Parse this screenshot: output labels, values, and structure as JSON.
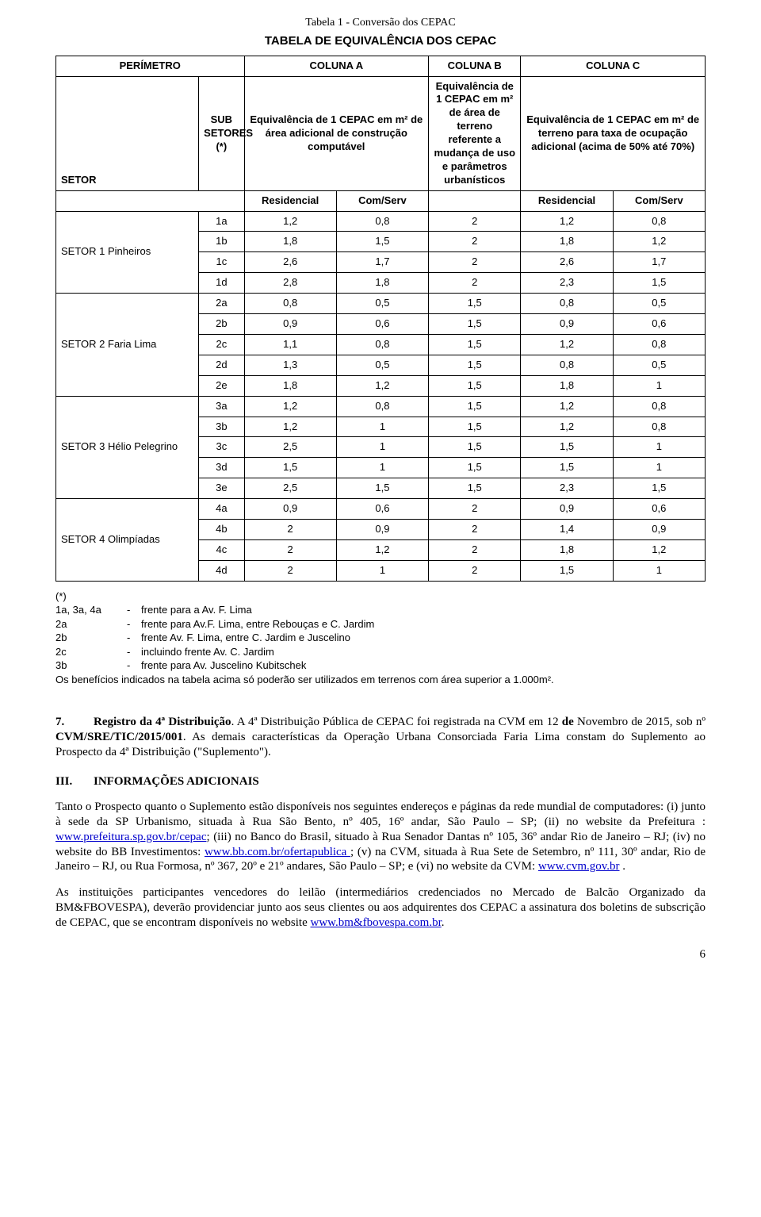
{
  "caption_small": "Tabela 1 - Conversão dos CEPAC",
  "caption_bold": "TABELA DE EQUIVALÊNCIA DOS CEPAC",
  "columns": {
    "perimetro": "PERÍMETRO",
    "col_a": "COLUNA A",
    "col_b": "COLUNA B",
    "col_c": "COLUNA C",
    "setor": "SETOR",
    "sub": "SUB SETORES (*)",
    "col_a_desc": "Equivalência de 1 CEPAC em m² de área adicional de construção computável",
    "col_b_desc": "Equivalência de 1 CEPAC em m² de área de terreno referente a mudança de uso e parâmetros urbanísticos",
    "col_c_desc": "Equivalência de 1 CEPAC em m² de terreno para taxa de ocupação adicional (acima de 50% até 70%)",
    "res": "Residencial",
    "com": "Com/Serv"
  },
  "sectors": [
    {
      "name": "SETOR 1  Pinheiros",
      "rows": [
        {
          "sub": "1a",
          "a_res": "1,2",
          "a_com": "0,8",
          "b": "2",
          "c_res": "1,2",
          "c_com": "0,8"
        },
        {
          "sub": "1b",
          "a_res": "1,8",
          "a_com": "1,5",
          "b": "2",
          "c_res": "1,8",
          "c_com": "1,2"
        },
        {
          "sub": "1c",
          "a_res": "2,6",
          "a_com": "1,7",
          "b": "2",
          "c_res": "2,6",
          "c_com": "1,7"
        },
        {
          "sub": "1d",
          "a_res": "2,8",
          "a_com": "1,8",
          "b": "2",
          "c_res": "2,3",
          "c_com": "1,5"
        }
      ]
    },
    {
      "name": "SETOR 2  Faria Lima",
      "rows": [
        {
          "sub": "2a",
          "a_res": "0,8",
          "a_com": "0,5",
          "b": "1,5",
          "c_res": "0,8",
          "c_com": "0,5"
        },
        {
          "sub": "2b",
          "a_res": "0,9",
          "a_com": "0,6",
          "b": "1,5",
          "c_res": "0,9",
          "c_com": "0,6"
        },
        {
          "sub": "2c",
          "a_res": "1,1",
          "a_com": "0,8",
          "b": "1,5",
          "c_res": "1,2",
          "c_com": "0,8"
        },
        {
          "sub": "2d",
          "a_res": "1,3",
          "a_com": "0,5",
          "b": "1,5",
          "c_res": "0,8",
          "c_com": "0,5"
        },
        {
          "sub": "2e",
          "a_res": "1,8",
          "a_com": "1,2",
          "b": "1,5",
          "c_res": "1,8",
          "c_com": "1"
        }
      ]
    },
    {
      "name": "SETOR 3  Hélio Pelegrino",
      "rows": [
        {
          "sub": "3a",
          "a_res": "1,2",
          "a_com": "0,8",
          "b": "1,5",
          "c_res": "1,2",
          "c_com": "0,8"
        },
        {
          "sub": "3b",
          "a_res": "1,2",
          "a_com": "1",
          "b": "1,5",
          "c_res": "1,2",
          "c_com": "0,8"
        },
        {
          "sub": "3c",
          "a_res": "2,5",
          "a_com": "1",
          "b": "1,5",
          "c_res": "1,5",
          "c_com": "1"
        },
        {
          "sub": "3d",
          "a_res": "1,5",
          "a_com": "1",
          "b": "1,5",
          "c_res": "1,5",
          "c_com": "1"
        },
        {
          "sub": "3e",
          "a_res": "2,5",
          "a_com": "1,5",
          "b": "1,5",
          "c_res": "2,3",
          "c_com": "1,5"
        }
      ]
    },
    {
      "name": "SETOR 4  Olimpíadas",
      "rows": [
        {
          "sub": "4a",
          "a_res": "0,9",
          "a_com": "0,6",
          "b": "2",
          "c_res": "0,9",
          "c_com": "0,6"
        },
        {
          "sub": "4b",
          "a_res": "2",
          "a_com": "0,9",
          "b": "2",
          "c_res": "1,4",
          "c_com": "0,9"
        },
        {
          "sub": "4c",
          "a_res": "2",
          "a_com": "1,2",
          "b": "2",
          "c_res": "1,8",
          "c_com": "1,2"
        },
        {
          "sub": "4d",
          "a_res": "2",
          "a_com": "1",
          "b": "2",
          "c_res": "1,5",
          "c_com": "1"
        }
      ]
    }
  ],
  "footnotes": {
    "star": "(*)",
    "items": [
      {
        "key": "1a, 3a, 4a",
        "sep": "-",
        "val": "frente para a Av. F. Lima"
      },
      {
        "key": "2a",
        "sep": "-",
        "val": "frente para Av.F. Lima, entre Rebouças e C. Jardim"
      },
      {
        "key": "2b",
        "sep": "-",
        "val": "frente Av. F. Lima, entre C. Jardim e Juscelino"
      },
      {
        "key": "2c",
        "sep": "-",
        "val": "incluindo frente Av. C. Jardim"
      },
      {
        "key": "3b",
        "sep": "-",
        "val": "frente para Av. Juscelino Kubitschek"
      }
    ],
    "final": "Os benefícios indicados na tabela acima só poderão ser utilizados em terrenos com área superior a 1.000m²."
  },
  "sec7": {
    "num": "7.",
    "title": "Registro da 4ª Distribuição",
    "text_a": ". A 4ª Distribuição Pública de CEPAC foi registrada na CVM em 12 ",
    "bold_de": "de",
    "text_b": " Novembro de 2015, sob nº ",
    "bold_reg": "CVM/SRE/TIC/2015/001",
    "text_c": ". As demais características da Operação Urbana Consorciada Faria Lima constam do Suplemento ao Prospecto da 4ª Distribuição (\"Suplemento\")."
  },
  "sec3": {
    "num": "III.",
    "title": "INFORMAÇÕES ADICIONAIS"
  },
  "para1": {
    "t1": "Tanto o Prospecto quanto o Suplemento estão disponíveis nos seguintes endereços e páginas da rede mundial de computadores: (i) junto à sede da SP Urbanismo, situada à Rua São Bento, nº 405, 16º andar, São Paulo – SP; (ii) no website da Prefeitura : ",
    "link1": "www.prefeitura.sp.gov.br/cepac",
    "t2": "; (iii) no Banco do Brasil, situado à Rua Senador Dantas nº 105, 36º andar Rio de Janeiro – RJ; (iv) no website do BB Investimentos: ",
    "link2": "www.bb.com.br/ofertapublica ",
    "t3": "; (v) na CVM, situada à Rua Sete de Setembro, nº 111, 30º andar, Rio de Janeiro – RJ, ou Rua Formosa, nº 367, 20º e 21º andares, São Paulo – SP; e (vi) no website da CVM: ",
    "link3": "www.cvm.gov.br",
    "t4": " ."
  },
  "para2": {
    "t1": "As instituições participantes vencedores do leilão (intermediários credenciados no Mercado de Balcão Organizado da BM&FBOVESPA), deverão providenciar junto aos seus clientes ou aos adquirentes dos CEPAC a assinatura dos boletins de subscrição de CEPAC, que se encontram disponíveis no website ",
    "link1": "www.bm&fbovespa.com.br",
    "t2": "."
  },
  "page_number": "6"
}
